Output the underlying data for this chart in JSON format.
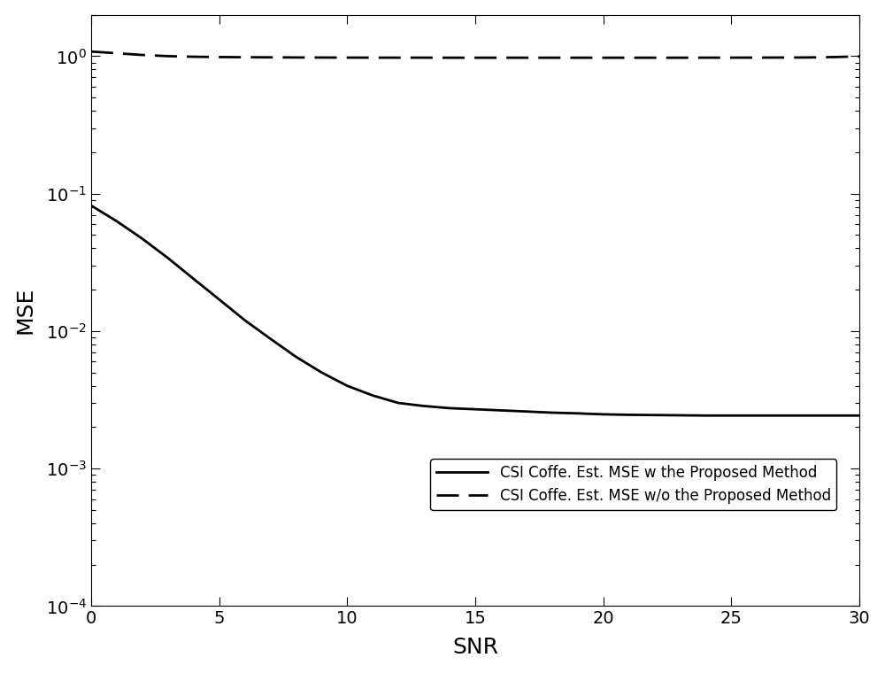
{
  "title": "",
  "xlabel": "SNR",
  "ylabel": "MSE",
  "xlim": [
    0,
    30
  ],
  "ylim": [
    0.0001,
    2.0
  ],
  "xticklabels": [
    0,
    5,
    10,
    15,
    20,
    25,
    30
  ],
  "snr_values": [
    0,
    1,
    2,
    3,
    4,
    5,
    6,
    7,
    8,
    9,
    10,
    11,
    12,
    13,
    14,
    15,
    16,
    17,
    18,
    19,
    20,
    21,
    22,
    23,
    24,
    25,
    26,
    27,
    28,
    29,
    30
  ],
  "solid_mse": [
    0.082,
    0.063,
    0.047,
    0.034,
    0.024,
    0.017,
    0.012,
    0.0088,
    0.0065,
    0.005,
    0.004,
    0.0034,
    0.003,
    0.00285,
    0.00275,
    0.0027,
    0.00265,
    0.0026,
    0.00255,
    0.00252,
    0.00248,
    0.00246,
    0.00245,
    0.00244,
    0.00243,
    0.00243,
    0.00243,
    0.00243,
    0.00243,
    0.00243,
    0.00243
  ],
  "dashed_mse": [
    1.08,
    1.05,
    1.02,
    1.0,
    0.99,
    0.985,
    0.982,
    0.98,
    0.978,
    0.977,
    0.976,
    0.975,
    0.975,
    0.975,
    0.974,
    0.974,
    0.974,
    0.974,
    0.974,
    0.974,
    0.974,
    0.974,
    0.974,
    0.974,
    0.975,
    0.975,
    0.976,
    0.977,
    0.978,
    0.985,
    0.995
  ],
  "solid_label": "CSI Coffe. Est. MSE w the Proposed Method",
  "dashed_label": "CSI Coffe. Est. MSE w/o the Proposed Method",
  "line_color": "#000000",
  "line_width": 2.0,
  "legend_fontsize": 12,
  "axis_label_fontsize": 18,
  "tick_fontsize": 14,
  "background_color": "#ffffff"
}
